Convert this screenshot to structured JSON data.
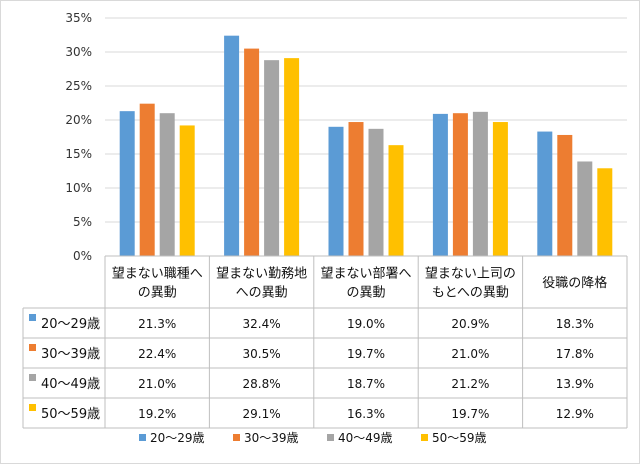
{
  "chart_data": {
    "type": "bar",
    "categories": [
      [
        "望まない職種へ",
        "の異動"
      ],
      [
        "望まない勤務地",
        "への異動"
      ],
      [
        "望まない部署へ",
        "の異動"
      ],
      [
        "望まない上司の",
        "もとへの異動"
      ],
      [
        "役職の降格"
      ]
    ],
    "series": [
      {
        "name": "20～29歳",
        "color": "#5B9BD5",
        "values": [
          21.3,
          32.4,
          19.0,
          20.9,
          18.3
        ],
        "labels": [
          "21.3%",
          "32.4%",
          "19.0%",
          "20.9%",
          "18.3%"
        ]
      },
      {
        "name": "30～39歳",
        "color": "#ED7D31",
        "values": [
          22.4,
          30.5,
          19.7,
          21.0,
          17.8
        ],
        "labels": [
          "22.4%",
          "30.5%",
          "19.7%",
          "21.0%",
          "17.8%"
        ]
      },
      {
        "name": "40～49歳",
        "color": "#A5A5A5",
        "values": [
          21.0,
          28.8,
          18.7,
          21.2,
          13.9
        ],
        "labels": [
          "21.0%",
          "28.8%",
          "18.7%",
          "21.2%",
          "13.9%"
        ]
      },
      {
        "name": "50～59歳",
        "color": "#FFC000",
        "values": [
          19.2,
          29.1,
          16.3,
          19.7,
          12.9
        ],
        "labels": [
          "19.2%",
          "29.1%",
          "16.3%",
          "19.7%",
          "12.9%"
        ]
      }
    ],
    "ylim": [
      0,
      35
    ],
    "yticks": [
      "0%",
      "5%",
      "10%",
      "15%",
      "20%",
      "25%",
      "30%",
      "35%"
    ],
    "grid": true,
    "data_table": true,
    "legend_position": "bottom"
  }
}
